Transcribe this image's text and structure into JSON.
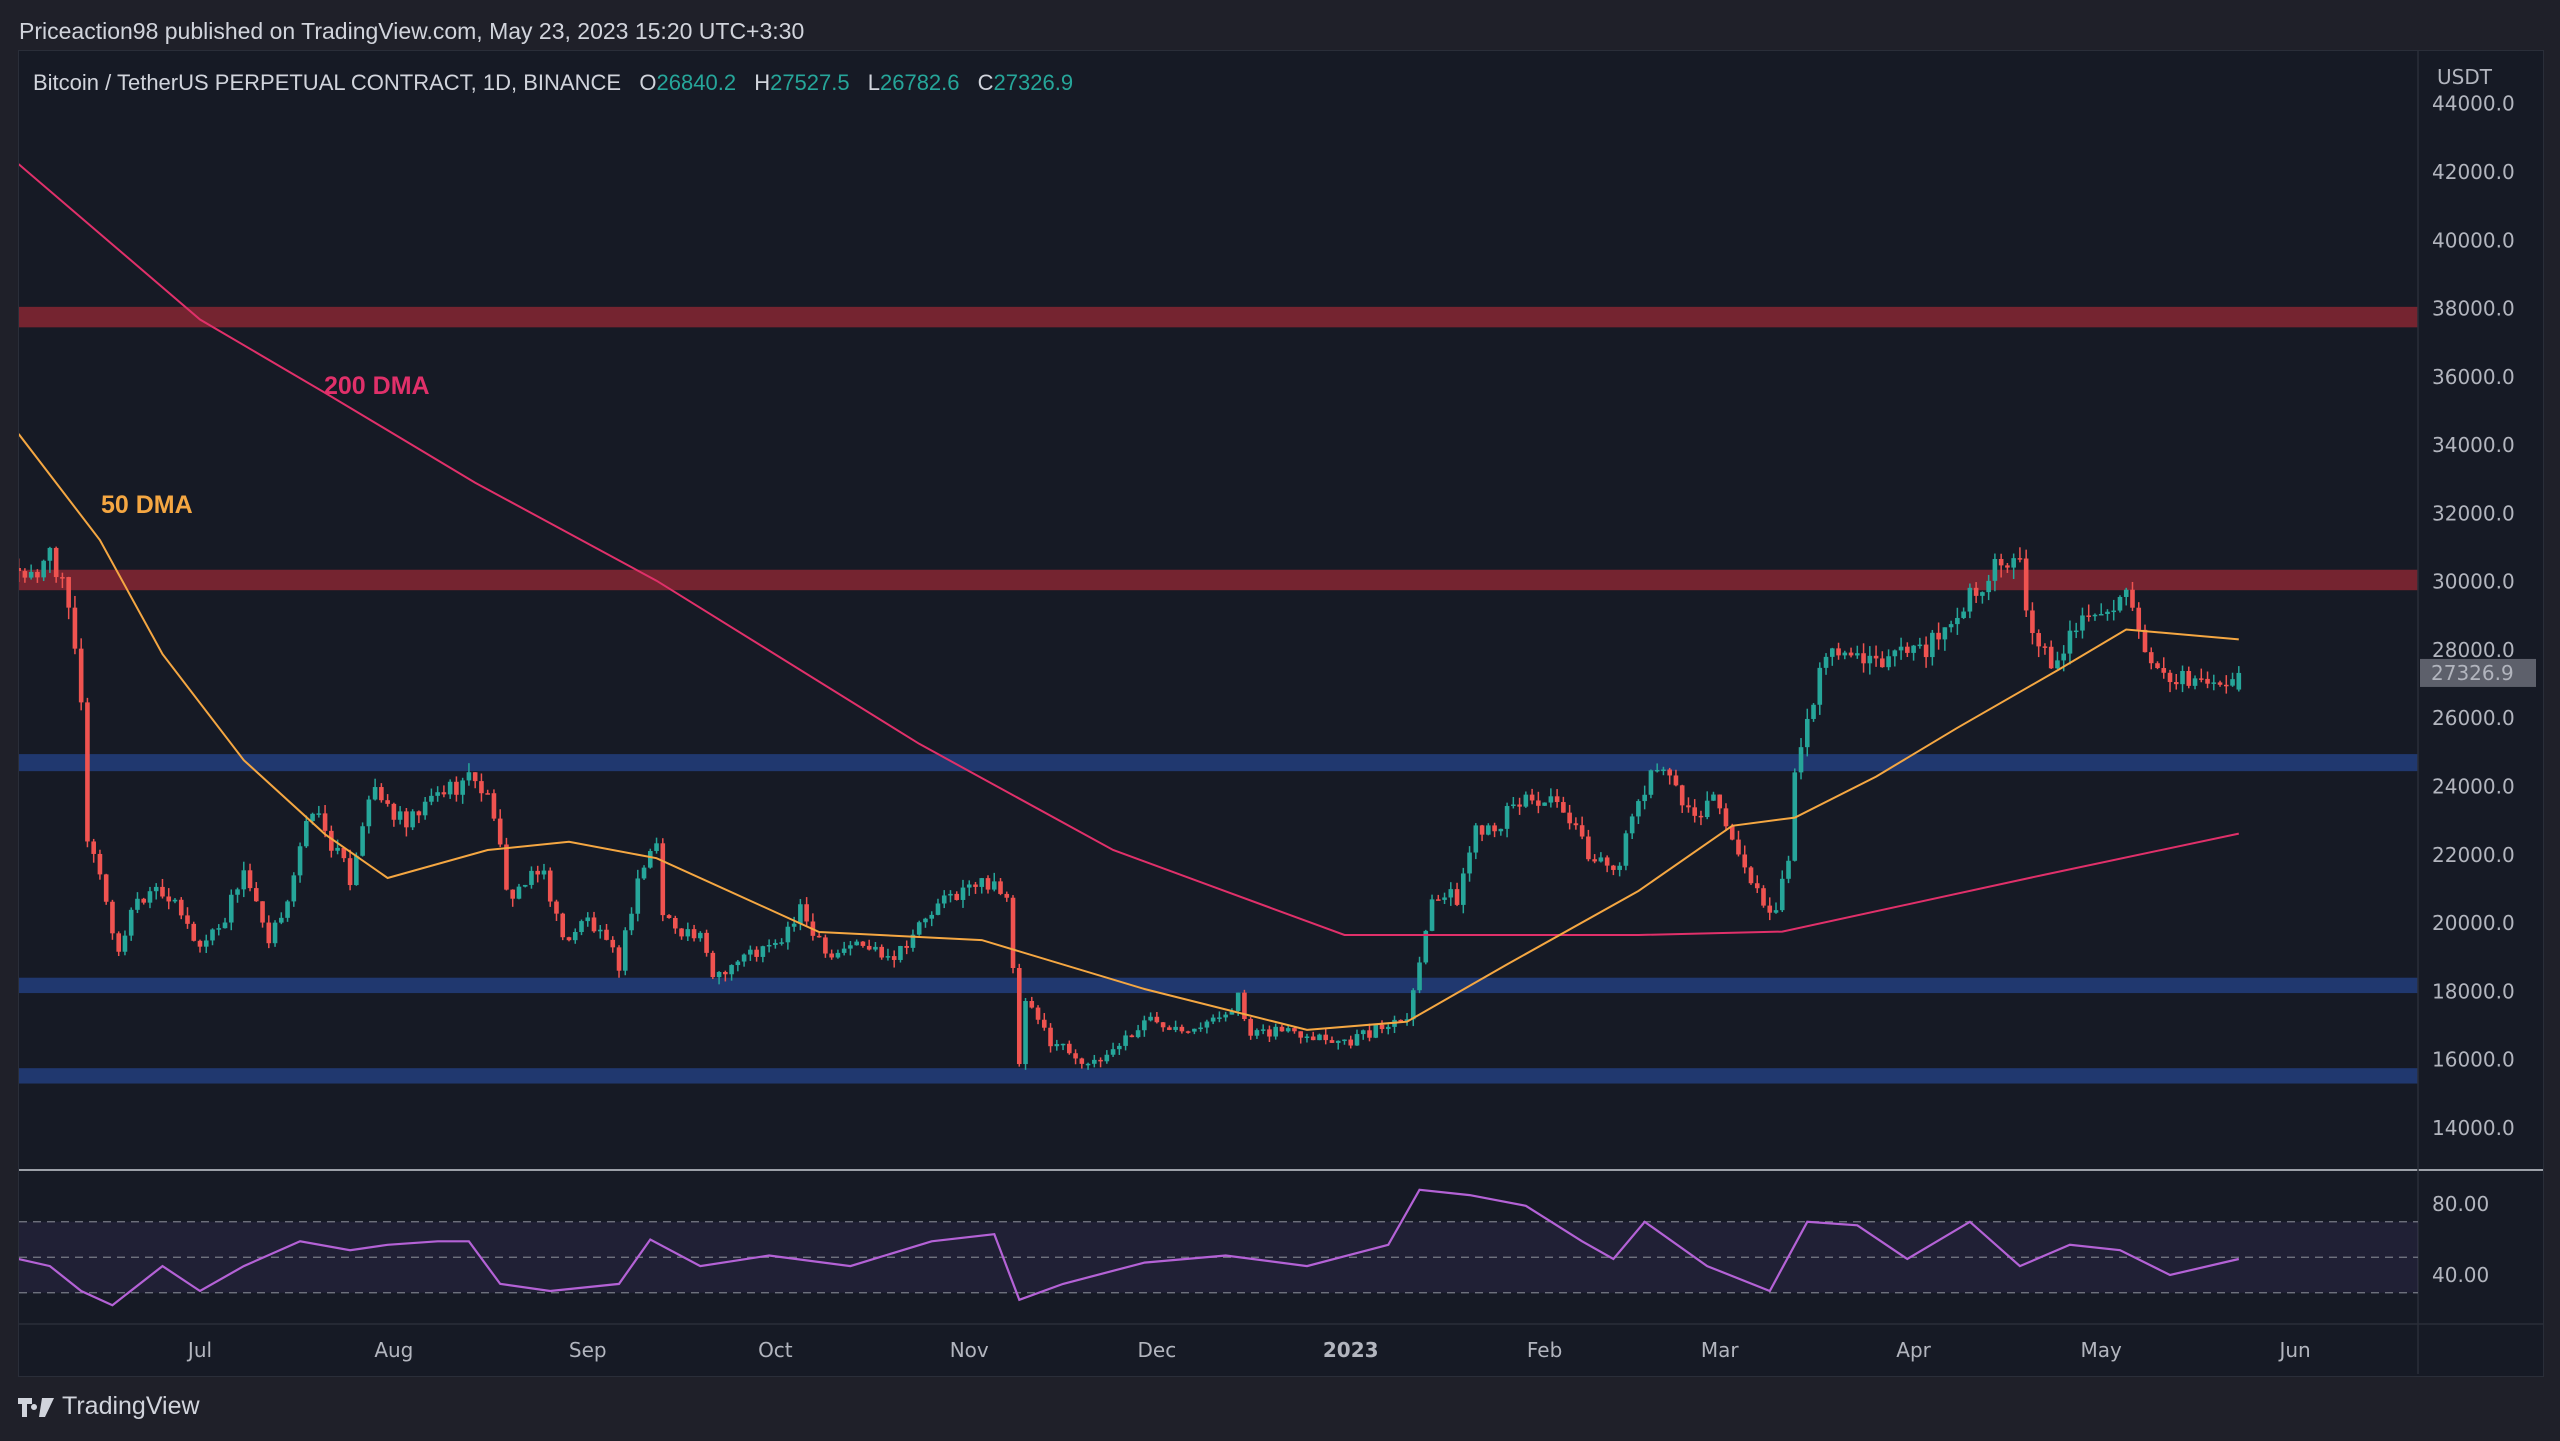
{
  "header": {
    "published": "Priceaction98 published on TradingView.com, May 23, 2023 15:20 UTC+3:30",
    "symbol": "Bitcoin / TetherUS PERPETUAL CONTRACT, 1D, BINANCE",
    "ohlc": {
      "o_label": "O",
      "o": "26840.2",
      "h_label": "H",
      "h": "27527.5",
      "l_label": "L",
      "l": "26782.6",
      "c_label": "C",
      "c": "27326.9"
    }
  },
  "footer": {
    "brand": "TradingView",
    "logo_icon": "tradingview-logo-icon"
  },
  "colors": {
    "up": "#26a69a",
    "down": "#ef5350",
    "dma50": "#f5a742",
    "dma200": "#e0306a",
    "resistance": "#7a2530",
    "support": "#213a73",
    "rsi": "#b462d6",
    "background": "#161a25"
  },
  "chart_data": {
    "type": "candlestick",
    "price_axis": {
      "unit": "USDT",
      "ylim": [
        13000,
        44000
      ],
      "ticks": [
        "44000.0",
        "42000.0",
        "40000.0",
        "38000.0",
        "36000.0",
        "34000.0",
        "32000.0",
        "30000.0",
        "28000.0",
        "26000.0",
        "24000.0",
        "22000.0",
        "20000.0",
        "18000.0",
        "16000.0",
        "14000.0"
      ],
      "last_price": "27326.9"
    },
    "time_axis": {
      "range": [
        "2022-06-02",
        "2023-06-24"
      ],
      "ticks": [
        {
          "label": "Jul",
          "date": "2022-07-01"
        },
        {
          "label": "Aug",
          "date": "2022-08-01"
        },
        {
          "label": "Sep",
          "date": "2022-09-01"
        },
        {
          "label": "Oct",
          "date": "2022-10-01"
        },
        {
          "label": "Nov",
          "date": "2022-11-01"
        },
        {
          "label": "Dec",
          "date": "2022-12-01"
        },
        {
          "label": "2023",
          "date": "2023-01-01"
        },
        {
          "label": "Feb",
          "date": "2023-02-01"
        },
        {
          "label": "Mar",
          "date": "2023-03-01"
        },
        {
          "label": "Apr",
          "date": "2023-04-01"
        },
        {
          "label": "May",
          "date": "2023-05-01"
        },
        {
          "label": "Jun",
          "date": "2023-06-01"
        }
      ]
    },
    "close_series": [
      [
        "2022-06-02",
        30400
      ],
      [
        "2022-06-05",
        29900
      ],
      [
        "2022-06-07",
        31100
      ],
      [
        "2022-06-10",
        29100
      ],
      [
        "2022-06-12",
        26600
      ],
      [
        "2022-06-13",
        22500
      ],
      [
        "2022-06-15",
        21500
      ],
      [
        "2022-06-18",
        19000
      ],
      [
        "2022-06-20",
        20500
      ],
      [
        "2022-06-24",
        21200
      ],
      [
        "2022-06-28",
        20200
      ],
      [
        "2022-07-01",
        19300
      ],
      [
        "2022-07-05",
        20200
      ],
      [
        "2022-07-08",
        21600
      ],
      [
        "2022-07-12",
        19300
      ],
      [
        "2022-07-15",
        20800
      ],
      [
        "2022-07-19",
        23400
      ],
      [
        "2022-07-25",
        21300
      ],
      [
        "2022-07-28",
        23800
      ],
      [
        "2022-07-30",
        23600
      ],
      [
        "2022-08-03",
        22800
      ],
      [
        "2022-08-08",
        23800
      ],
      [
        "2022-08-14",
        24300
      ],
      [
        "2022-08-17",
        23300
      ],
      [
        "2022-08-19",
        20800
      ],
      [
        "2022-08-25",
        21500
      ],
      [
        "2022-08-28",
        19500
      ],
      [
        "2022-09-01",
        20100
      ],
      [
        "2022-09-06",
        18800
      ],
      [
        "2022-09-09",
        21300
      ],
      [
        "2022-09-12",
        22400
      ],
      [
        "2022-09-13",
        20200
      ],
      [
        "2022-09-19",
        19500
      ],
      [
        "2022-09-21",
        18500
      ],
      [
        "2022-09-27",
        19100
      ],
      [
        "2022-10-01",
        19300
      ],
      [
        "2022-10-05",
        20300
      ],
      [
        "2022-10-10",
        19100
      ],
      [
        "2022-10-13",
        19400
      ],
      [
        "2022-10-20",
        19100
      ],
      [
        "2022-10-25",
        20100
      ],
      [
        "2022-10-29",
        20800
      ],
      [
        "2022-11-05",
        21300
      ],
      [
        "2022-11-07",
        20600
      ],
      [
        "2022-11-08",
        18500
      ],
      [
        "2022-11-09",
        15900
      ],
      [
        "2022-11-10",
        17600
      ],
      [
        "2022-11-14",
        16600
      ],
      [
        "2022-11-21",
        15800
      ],
      [
        "2022-11-25",
        16500
      ],
      [
        "2022-11-30",
        17200
      ],
      [
        "2022-12-05",
        17000
      ],
      [
        "2022-12-10",
        17100
      ],
      [
        "2022-12-14",
        17800
      ],
      [
        "2022-12-16",
        16600
      ],
      [
        "2022-12-20",
        16900
      ],
      [
        "2022-12-25",
        16800
      ],
      [
        "2022-12-31",
        16550
      ],
      [
        "2023-01-05",
        16850
      ],
      [
        "2023-01-10",
        17400
      ],
      [
        "2023-01-12",
        18800
      ],
      [
        "2023-01-14",
        20900
      ],
      [
        "2023-01-18",
        20700
      ],
      [
        "2023-01-21",
        22800
      ],
      [
        "2023-01-25",
        23000
      ],
      [
        "2023-01-29",
        23700
      ],
      [
        "2023-02-02",
        23500
      ],
      [
        "2023-02-05",
        22900
      ],
      [
        "2023-02-09",
        21800
      ],
      [
        "2023-02-13",
        21800
      ],
      [
        "2023-02-16",
        23600
      ],
      [
        "2023-02-20",
        24800
      ],
      [
        "2023-02-24",
        23200
      ],
      [
        "2023-03-01",
        23600
      ],
      [
        "2023-03-03",
        22300
      ],
      [
        "2023-03-09",
        20300
      ],
      [
        "2023-03-10",
        20200
      ],
      [
        "2023-03-12",
        22000
      ],
      [
        "2023-03-13",
        24200
      ],
      [
        "2023-03-17",
        27400
      ],
      [
        "2023-03-20",
        28000
      ],
      [
        "2023-03-25",
        27500
      ],
      [
        "2023-03-30",
        28000
      ],
      [
        "2023-04-05",
        28200
      ],
      [
        "2023-04-10",
        29700
      ],
      [
        "2023-04-14",
        30400
      ],
      [
        "2023-04-18",
        30400
      ],
      [
        "2023-04-20",
        28300
      ],
      [
        "2023-04-23",
        27600
      ],
      [
        "2023-04-26",
        28400
      ],
      [
        "2023-04-30",
        29300
      ],
      [
        "2023-05-05",
        29500
      ],
      [
        "2023-05-06",
        28900
      ],
      [
        "2023-05-08",
        27700
      ],
      [
        "2023-05-12",
        26800
      ],
      [
        "2023-05-15",
        27200
      ],
      [
        "2023-05-20",
        26900
      ],
      [
        "2023-05-23",
        27326.9
      ]
    ],
    "last_candle": {
      "date": "2023-05-23",
      "open": 26840.2,
      "high": 27527.5,
      "low": 26782.6,
      "close": 27326.9
    },
    "moving_averages": [
      {
        "name": "200 DMA",
        "points": [
          [
            "2022-06-02",
            42230
          ],
          [
            "2022-07-01",
            37680
          ],
          [
            "2022-07-21",
            35530
          ],
          [
            "2022-08-14",
            32900
          ],
          [
            "2022-09-12",
            30030
          ],
          [
            "2022-10-24",
            25250
          ],
          [
            "2022-11-24",
            22140
          ],
          [
            "2022-12-31",
            19650
          ],
          [
            "2023-02-16",
            19650
          ],
          [
            "2023-03-11",
            19750
          ],
          [
            "2023-04-22",
            21420
          ],
          [
            "2023-05-23",
            22620
          ]
        ]
      },
      {
        "name": "50 DMA",
        "points": [
          [
            "2022-06-02",
            34330
          ],
          [
            "2022-06-15",
            31220
          ],
          [
            "2022-06-25",
            27880
          ],
          [
            "2022-07-08",
            24770
          ],
          [
            "2022-07-21",
            22600
          ],
          [
            "2022-07-31",
            21320
          ],
          [
            "2022-08-16",
            22140
          ],
          [
            "2022-08-29",
            22380
          ],
          [
            "2022-09-12",
            21900
          ],
          [
            "2022-10-08",
            19740
          ],
          [
            "2022-11-03",
            19500
          ],
          [
            "2022-11-29",
            18070
          ],
          [
            "2022-12-25",
            16870
          ],
          [
            "2023-01-10",
            17110
          ],
          [
            "2023-01-26",
            18790
          ],
          [
            "2023-02-16",
            20940
          ],
          [
            "2023-03-03",
            22850
          ],
          [
            "2023-03-13",
            23090
          ],
          [
            "2023-03-26",
            24290
          ],
          [
            "2023-04-08",
            25720
          ],
          [
            "2023-04-24",
            27400
          ],
          [
            "2023-05-05",
            28600
          ],
          [
            "2023-05-23",
            28310
          ]
        ]
      }
    ],
    "zones": [
      {
        "type": "resistance",
        "low": 37450,
        "high": 38050
      },
      {
        "type": "resistance",
        "low": 29750,
        "high": 30350
      },
      {
        "type": "support",
        "low": 24450,
        "high": 24950
      },
      {
        "type": "support",
        "low": 17950,
        "high": 18400
      },
      {
        "type": "support",
        "low": 15300,
        "high": 15750
      }
    ],
    "rsi": {
      "ylim": [
        20,
        95
      ],
      "ticks": [
        "80.00",
        "40.00"
      ],
      "bands": [
        70,
        50,
        30
      ],
      "points": [
        [
          "2022-06-02",
          49
        ],
        [
          "2022-06-07",
          45
        ],
        [
          "2022-06-12",
          31
        ],
        [
          "2022-06-17",
          23
        ],
        [
          "2022-06-25",
          45
        ],
        [
          "2022-07-01",
          31
        ],
        [
          "2022-07-08",
          45
        ],
        [
          "2022-07-17",
          59
        ],
        [
          "2022-07-25",
          54
        ],
        [
          "2022-07-31",
          57
        ],
        [
          "2022-08-08",
          59
        ],
        [
          "2022-08-13",
          59
        ],
        [
          "2022-08-18",
          35
        ],
        [
          "2022-08-26",
          31
        ],
        [
          "2022-09-06",
          35
        ],
        [
          "2022-09-11",
          60
        ],
        [
          "2022-09-19",
          45
        ],
        [
          "2022-09-30",
          51
        ],
        [
          "2022-10-13",
          45
        ],
        [
          "2022-10-26",
          59
        ],
        [
          "2022-11-05",
          63
        ],
        [
          "2022-11-09",
          26
        ],
        [
          "2022-11-16",
          35
        ],
        [
          "2022-11-29",
          47
        ],
        [
          "2022-12-12",
          51
        ],
        [
          "2022-12-25",
          45
        ],
        [
          "2023-01-07",
          57
        ],
        [
          "2023-01-12",
          88
        ],
        [
          "2023-01-20",
          85
        ],
        [
          "2023-01-29",
          79
        ],
        [
          "2023-02-07",
          59
        ],
        [
          "2023-02-12",
          49
        ],
        [
          "2023-02-17",
          70
        ],
        [
          "2023-02-27",
          45
        ],
        [
          "2023-03-09",
          31
        ],
        [
          "2023-03-15",
          70
        ],
        [
          "2023-03-23",
          68
        ],
        [
          "2023-03-31",
          49
        ],
        [
          "2023-04-10",
          70
        ],
        [
          "2023-04-18",
          45
        ],
        [
          "2023-04-26",
          57
        ],
        [
          "2023-05-04",
          54
        ],
        [
          "2023-05-12",
          40
        ],
        [
          "2023-05-23",
          49
        ]
      ]
    },
    "annotations": [
      {
        "text": "200 DMA",
        "color": "#e0306a"
      },
      {
        "text": "50 DMA",
        "color": "#f5a742"
      }
    ]
  }
}
